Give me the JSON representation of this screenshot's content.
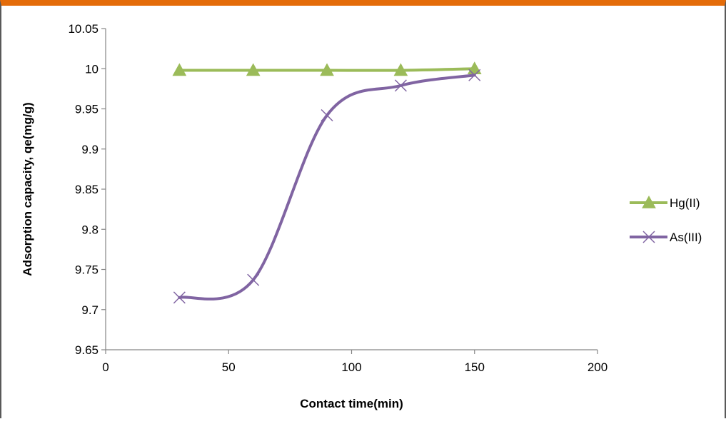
{
  "chart_data": {
    "type": "line",
    "title": "",
    "xlabel": "Contact time(min)",
    "ylabel": "Adsorption capacity, qe(mg/g)",
    "xlim": [
      0,
      200
    ],
    "ylim": [
      9.65,
      10.05
    ],
    "xticks": [
      0,
      50,
      100,
      150,
      200
    ],
    "yticks": [
      9.65,
      9.7,
      9.75,
      9.8,
      9.85,
      9.9,
      9.95,
      10,
      10.05
    ],
    "xtick_labels": [
      "0",
      "50",
      "100",
      "150",
      "200"
    ],
    "ytick_labels": [
      "9.65",
      "9.7",
      "9.75",
      "9.8",
      "9.85",
      "9.9",
      "9.95",
      "10",
      "10.05"
    ],
    "grid": false,
    "legend_position": "right",
    "x": [
      30,
      60,
      90,
      120,
      150
    ],
    "series": [
      {
        "name": "Hg(II)",
        "values": [
          9.998,
          9.998,
          9.998,
          9.998,
          10.0
        ],
        "color": "#9bbb59",
        "marker": "triangle"
      },
      {
        "name": "As(III)",
        "values": [
          9.715,
          9.737,
          9.942,
          9.979,
          9.992
        ],
        "color": "#8064a2",
        "marker": "x"
      }
    ]
  }
}
